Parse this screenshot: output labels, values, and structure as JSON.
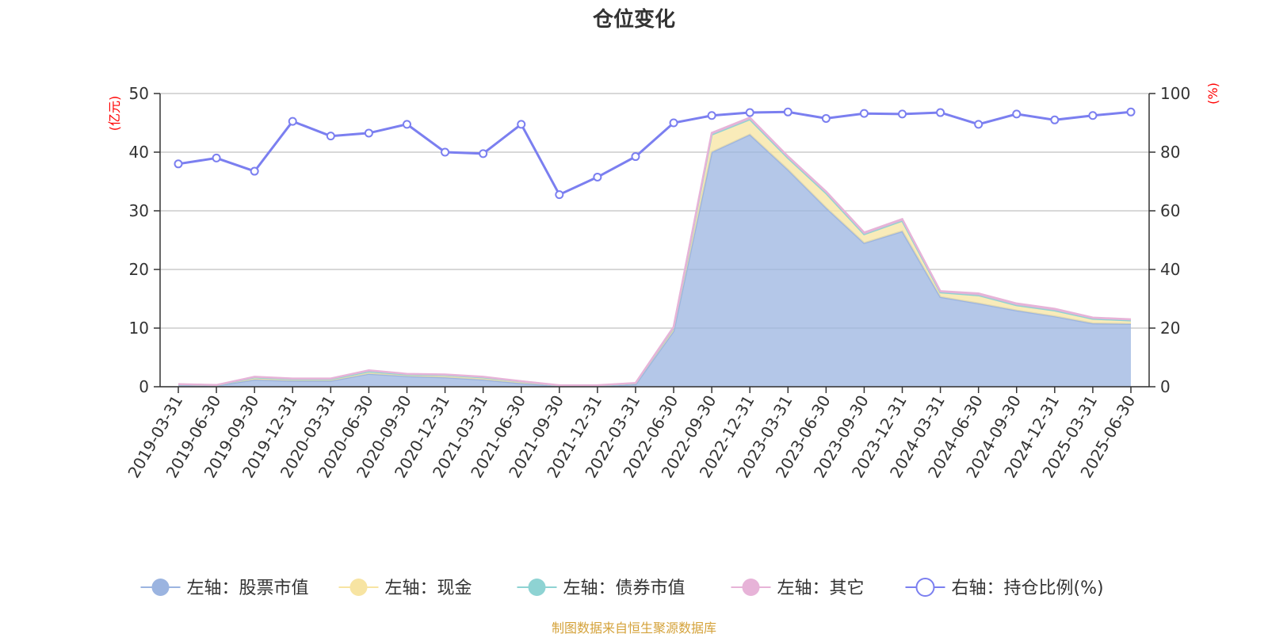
{
  "chart_data": {
    "type": "area",
    "title": "仓位变化",
    "left_axis_unit": "亿元",
    "right_axis_unit": "%",
    "ylim_left": [
      0,
      50
    ],
    "ylim_right": [
      0,
      100
    ],
    "yticks_left": [
      "0",
      "10",
      "20",
      "30",
      "40",
      "50"
    ],
    "yticks_right": [
      "0",
      "20",
      "40",
      "60",
      "80",
      "100"
    ],
    "grid": true,
    "legend_position": "bottom",
    "categories": [
      "2019-03-31",
      "2019-06-30",
      "2019-09-30",
      "2019-12-31",
      "2020-03-31",
      "2020-06-30",
      "2020-09-30",
      "2020-12-31",
      "2021-03-31",
      "2021-06-30",
      "2021-09-30",
      "2021-12-31",
      "2022-03-31",
      "2022-06-30",
      "2022-09-30",
      "2022-12-31",
      "2023-03-31",
      "2023-06-30",
      "2023-09-30",
      "2023-12-31",
      "2024-03-31",
      "2024-06-30",
      "2024-09-30",
      "2024-12-31",
      "2025-03-31",
      "2025-06-30"
    ],
    "series": [
      {
        "name": "左轴：股票市值",
        "axis": "left",
        "color": "#9bb4e0",
        "values": [
          0.3,
          0.2,
          1.2,
          1.0,
          1.0,
          2.2,
          1.8,
          1.6,
          1.2,
          0.6,
          0.1,
          0.1,
          0.4,
          9.5,
          40.0,
          43.0,
          37.0,
          30.5,
          24.5,
          26.5,
          15.3,
          14.2,
          13.0,
          12.0,
          10.8,
          10.7
        ]
      },
      {
        "name": "左轴：现金",
        "axis": "left",
        "color": "#f7e4a2",
        "values": [
          0.1,
          0.05,
          0.4,
          0.3,
          0.3,
          0.4,
          0.3,
          0.4,
          0.4,
          0.3,
          0.1,
          0.1,
          0.2,
          0.6,
          3.0,
          2.6,
          2.0,
          2.5,
          1.5,
          1.8,
          0.8,
          1.4,
          0.9,
          1.0,
          0.8,
          0.6
        ]
      },
      {
        "name": "左轴：债券市值",
        "axis": "left",
        "color": "#8ed3d3",
        "values": [
          0,
          0,
          0,
          0,
          0,
          0,
          0,
          0,
          0,
          0,
          0,
          0,
          0,
          0,
          0,
          0,
          0,
          0,
          0,
          0,
          0,
          0,
          0,
          0,
          0,
          0
        ]
      },
      {
        "name": "左轴：其它",
        "axis": "left",
        "color": "#e7b3d8",
        "values": [
          0.05,
          0.05,
          0.1,
          0.1,
          0.1,
          0.2,
          0.1,
          0.1,
          0.1,
          0.05,
          0.05,
          0.05,
          0.05,
          0.1,
          0.3,
          0.3,
          0.3,
          0.3,
          0.3,
          0.3,
          0.2,
          0.3,
          0.3,
          0.3,
          0.2,
          0.2
        ]
      },
      {
        "name": "右轴：持仓比例(%)",
        "axis": "right",
        "color": "#7b7ff0",
        "values": [
          76,
          78,
          73.5,
          90.5,
          85.5,
          86.5,
          89.5,
          80,
          79.5,
          89.5,
          65.5,
          71.5,
          78.5,
          90,
          92.5,
          93.5,
          93.7,
          91.5,
          93.2,
          93,
          93.5,
          89.5,
          93,
          91,
          92.5,
          93.7
        ]
      }
    ]
  },
  "source_text": "制图数据来自恒生聚源数据库"
}
